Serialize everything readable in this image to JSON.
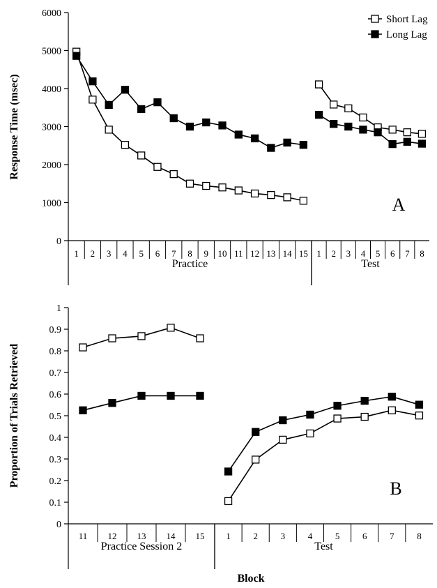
{
  "chart_data": [
    {
      "panel": "A",
      "type": "line",
      "ylabel": "Response Time (msec)",
      "ylim": [
        0,
        6000
      ],
      "yticks": [
        "0",
        "1000",
        "2000",
        "3000",
        "4000",
        "5000",
        "6000"
      ],
      "groups": [
        {
          "label": "Practice",
          "categories": [
            "1",
            "2",
            "3",
            "4",
            "5",
            "6",
            "7",
            "8",
            "9",
            "10",
            "11",
            "12",
            "13",
            "14",
            "15"
          ]
        },
        {
          "label": "Test",
          "categories": [
            "1",
            "2",
            "3",
            "4",
            "5",
            "6",
            "7",
            "8"
          ]
        }
      ],
      "series": [
        {
          "name": "Short Lag",
          "marker": "open-square",
          "segments": [
            [
              4970,
              3710,
              2920,
              2520,
              2240,
              1940,
              1750,
              1500,
              1440,
              1400,
              1320,
              1240,
              1200,
              1140,
              1050
            ],
            [
              4110,
              3580,
              3480,
              3240,
              2980,
              2920,
              2850,
              2810
            ]
          ]
        },
        {
          "name": "Long Lag",
          "marker": "filled-square",
          "segments": [
            [
              4860,
              4190,
              3570,
              3970,
              3460,
              3640,
              3220,
              3000,
              3110,
              3030,
              2790,
              2690,
              2440,
              2580,
              2520
            ],
            [
              3310,
              3070,
              3000,
              2920,
              2850,
              2540,
              2600,
              2550
            ]
          ]
        }
      ],
      "legend": "top-right",
      "grid": false
    },
    {
      "panel": "B",
      "type": "line",
      "ylabel": "Proportion of Trials Retrieved",
      "xlabel": "Block",
      "ylim": [
        0,
        1
      ],
      "yticks": [
        "0",
        "0.1",
        "0.2",
        "0.3",
        "0.4",
        "0.5",
        "0.6",
        "0.7",
        "0.8",
        "0.9",
        "1"
      ],
      "groups": [
        {
          "label": "Practice Session 2",
          "categories": [
            "11",
            "12",
            "13",
            "14",
            "15"
          ]
        },
        {
          "label": "Test",
          "categories": [
            "1",
            "2",
            "3",
            "4",
            "5",
            "6",
            "7",
            "8"
          ]
        }
      ],
      "series": [
        {
          "name": "Short Lag",
          "marker": "open-square",
          "segments": [
            [
              0.816,
              0.858,
              0.868,
              0.907,
              0.858
            ],
            [
              0.105,
              0.297,
              0.389,
              0.418,
              0.487,
              0.495,
              0.525,
              0.501
            ]
          ]
        },
        {
          "name": "Long Lag",
          "marker": "filled-square",
          "segments": [
            [
              0.525,
              0.559,
              0.592,
              0.592,
              0.592
            ],
            [
              0.242,
              0.425,
              0.479,
              0.505,
              0.546,
              0.569,
              0.588,
              0.551
            ]
          ]
        }
      ],
      "grid": false
    }
  ]
}
